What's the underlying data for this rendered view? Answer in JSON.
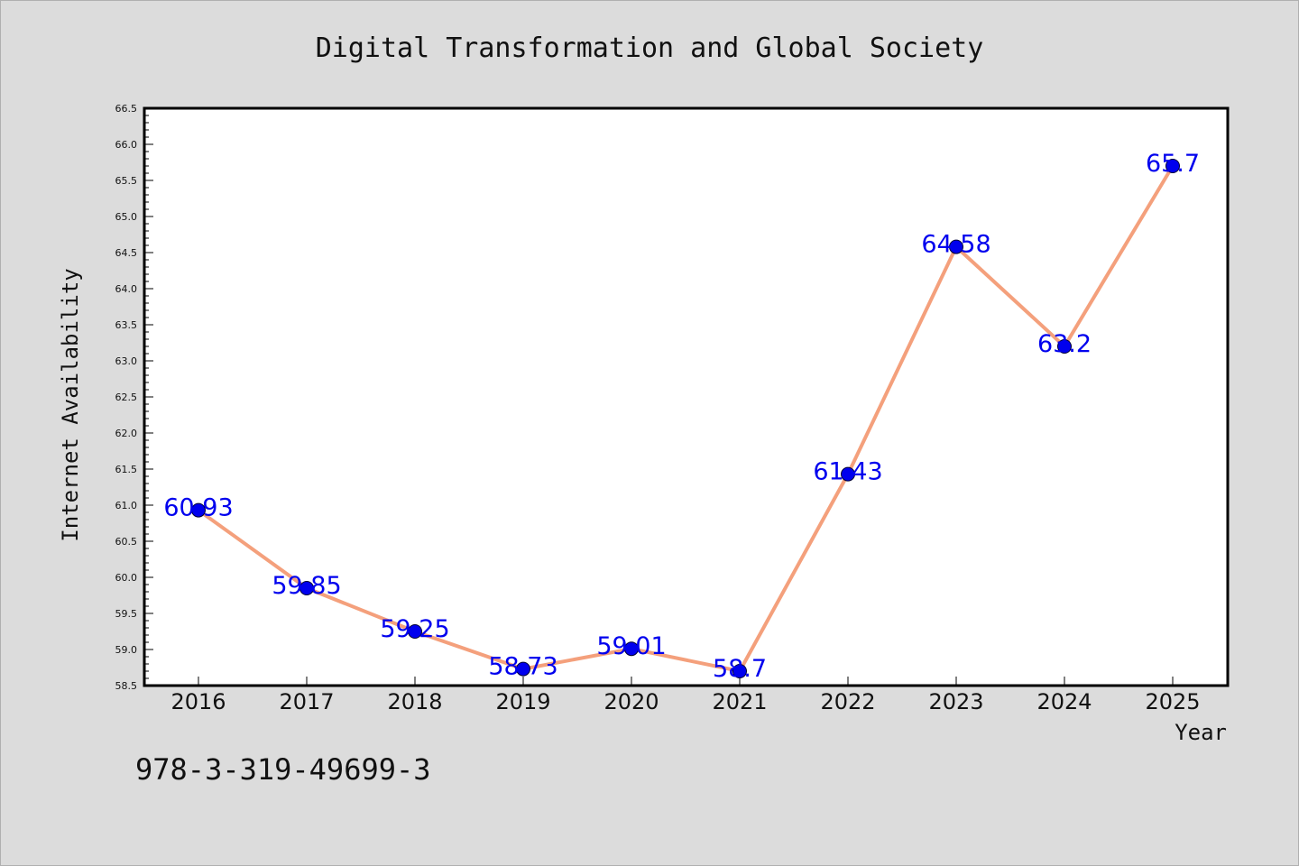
{
  "chart_data": {
    "type": "line",
    "title": "Digital Transformation and Global Society",
    "xlabel": "Year",
    "ylabel": "Internet Availability",
    "categories": [
      "2016",
      "2017",
      "2018",
      "2019",
      "2020",
      "2021",
      "2022",
      "2023",
      "2024",
      "2025"
    ],
    "series": [
      {
        "values": [
          60.93,
          59.85,
          59.25,
          58.73,
          59.01,
          58.7,
          61.43,
          64.58,
          63.2,
          65.7
        ],
        "data_labels": [
          "60.93",
          "59.85",
          "59.25",
          "58.73",
          "59.01",
          "58.7",
          "61.43",
          "64.58",
          "63.2",
          "65.7"
        ]
      }
    ],
    "ylim": [
      58.5,
      66.5
    ],
    "yticks": [
      "58.5",
      "59.0",
      "59.5",
      "60.0",
      "60.5",
      "61.0",
      "61.5",
      "62.0",
      "62.5",
      "63.0",
      "63.5",
      "64.0",
      "64.5",
      "65.0",
      "65.5",
      "66.0",
      "66.5"
    ],
    "grid": false,
    "legend": "none",
    "colors": {
      "line": "#f4a07c",
      "marker": "#0000ee",
      "label": "#0000ee",
      "background": "#dcdcdc",
      "plot_background": "#ffffff"
    }
  },
  "footer": {
    "isbn": "978-3-319-49699-3"
  }
}
